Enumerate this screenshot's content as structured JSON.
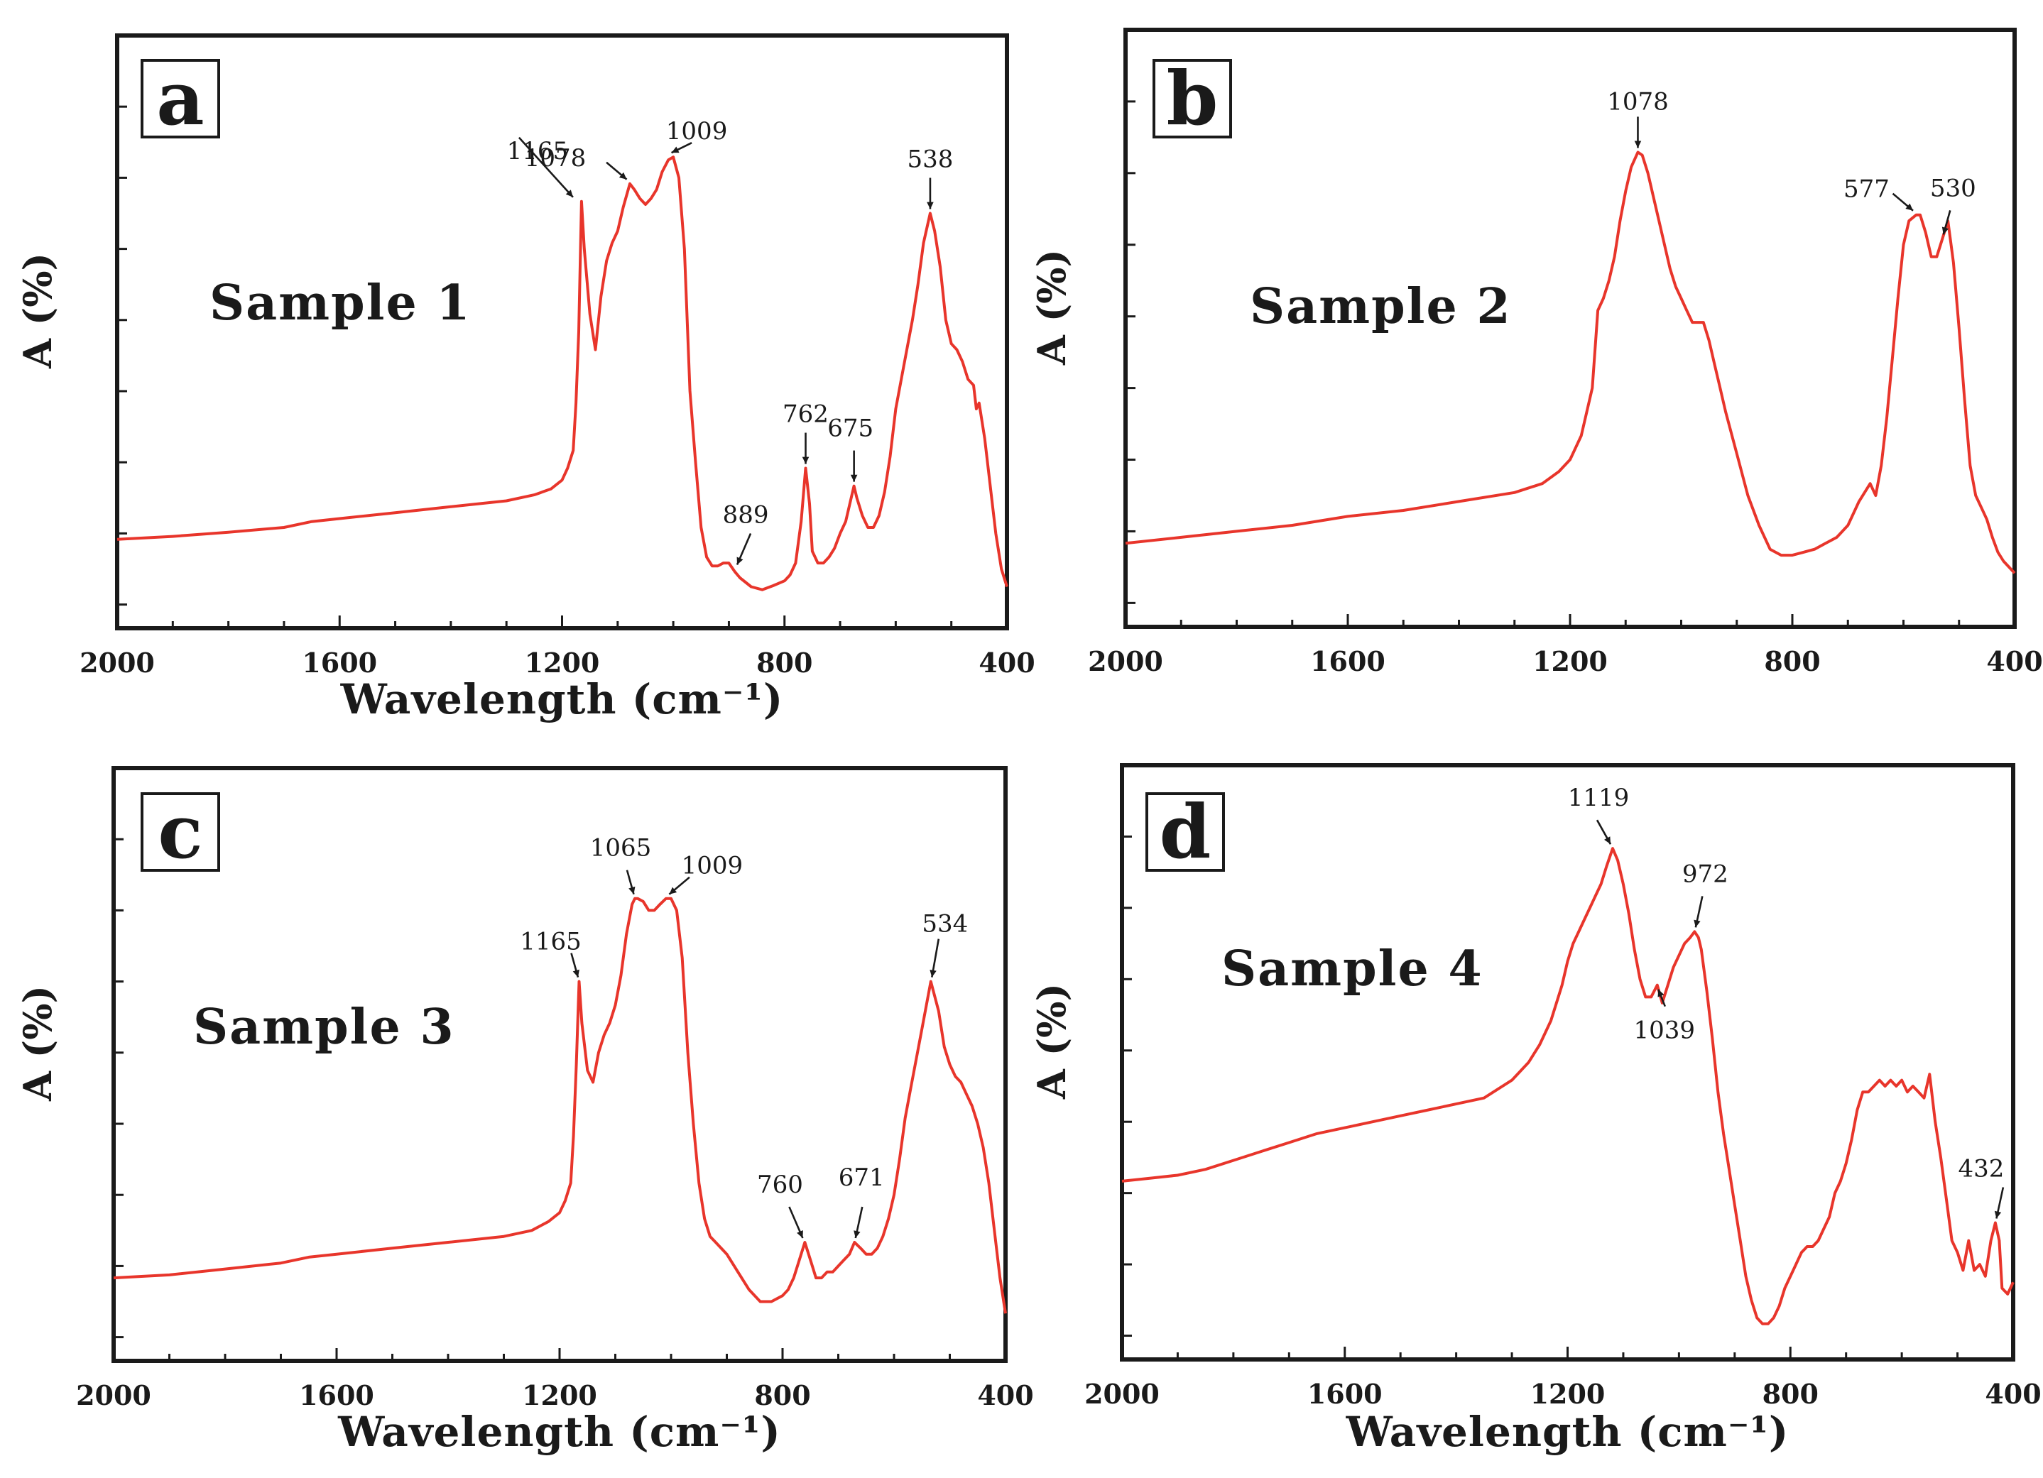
{
  "chart_data": [
    {
      "type": "line",
      "panel_letter": "a",
      "sample_label": "Sample 1",
      "xlabel": "Wavelength (cm⁻¹)",
      "ylabel": "A (%)",
      "xlim": [
        2000,
        400
      ],
      "ylim": [
        0,
        100
      ],
      "xticks": [
        2000,
        1600,
        1200,
        800,
        400
      ],
      "x": [
        2000,
        1900,
        1800,
        1700,
        1650,
        1600,
        1500,
        1400,
        1300,
        1250,
        1220,
        1200,
        1190,
        1180,
        1175,
        1170,
        1165,
        1160,
        1150,
        1140,
        1130,
        1120,
        1110,
        1100,
        1090,
        1078,
        1070,
        1060,
        1050,
        1040,
        1030,
        1020,
        1009,
        1000,
        990,
        980,
        970,
        960,
        950,
        940,
        930,
        920,
        910,
        900,
        889,
        880,
        860,
        840,
        820,
        800,
        790,
        780,
        770,
        762,
        755,
        750,
        740,
        730,
        720,
        710,
        700,
        690,
        675,
        670,
        660,
        650,
        640,
        630,
        620,
        610,
        600,
        590,
        580,
        570,
        560,
        550,
        538,
        530,
        520,
        510,
        500,
        490,
        480,
        470,
        460,
        455,
        450,
        440,
        430,
        420,
        410,
        400
      ],
      "series": [
        {
          "name": "Sample 1",
          "values": [
            15,
            15.5,
            16.2,
            17,
            18,
            18.5,
            19.5,
            20.5,
            21.5,
            22.5,
            23.5,
            25,
            27,
            30,
            38,
            50,
            72,
            64,
            53,
            47,
            56,
            62,
            65,
            67,
            71,
            75,
            74,
            72.5,
            71.5,
            72.5,
            74,
            77,
            79,
            79.5,
            76,
            64,
            40,
            28,
            17,
            12,
            10.5,
            10.5,
            11,
            11,
            9.5,
            8.5,
            7,
            6.5,
            7.2,
            8,
            9,
            11,
            18,
            27,
            21,
            13,
            11,
            11,
            12,
            13.5,
            16,
            18,
            24,
            22,
            19,
            17,
            17,
            19,
            23,
            29,
            37,
            42,
            47,
            52,
            58,
            65,
            70,
            67,
            61,
            52,
            48,
            47,
            45,
            42,
            41,
            37,
            38,
            32,
            24,
            16,
            10,
            7
          ]
        }
      ],
      "annotations": [
        {
          "text": "1165",
          "x": 1165,
          "y": 72
        },
        {
          "text": "1078",
          "x": 1078,
          "y": 75
        },
        {
          "text": "1009",
          "x": 1009,
          "y": 79.5
        },
        {
          "text": "538",
          "x": 538,
          "y": 70
        },
        {
          "text": "889",
          "x": 889,
          "y": 10
        },
        {
          "text": "762",
          "x": 762,
          "y": 27
        },
        {
          "text": "675",
          "x": 675,
          "y": 24
        }
      ]
    },
    {
      "type": "line",
      "panel_letter": "b",
      "sample_label": "Sample 2",
      "xlabel": "",
      "ylabel": "A (%)",
      "xlim": [
        2000,
        400
      ],
      "ylim": [
        0,
        100
      ],
      "xticks": [
        2000,
        1600,
        1200,
        800,
        400
      ],
      "x": [
        2000,
        1900,
        1800,
        1700,
        1600,
        1500,
        1400,
        1300,
        1250,
        1220,
        1200,
        1180,
        1160,
        1150,
        1140,
        1130,
        1120,
        1110,
        1100,
        1090,
        1078,
        1070,
        1060,
        1050,
        1040,
        1030,
        1020,
        1010,
        1000,
        990,
        980,
        970,
        960,
        950,
        940,
        930,
        920,
        900,
        880,
        860,
        840,
        820,
        800,
        780,
        760,
        740,
        720,
        700,
        680,
        660,
        650,
        640,
        630,
        620,
        610,
        600,
        590,
        577,
        570,
        560,
        550,
        540,
        530,
        520,
        510,
        500,
        490,
        480,
        470,
        460,
        450,
        440,
        430,
        420,
        410,
        400
      ],
      "series": [
        {
          "name": "Sample 2",
          "values": [
            14,
            15,
            16,
            17,
            18.5,
            19.5,
            21,
            22.5,
            24,
            26,
            28,
            32,
            40,
            53,
            55,
            58,
            62,
            68,
            73,
            77,
            79.5,
            79,
            76,
            72,
            68,
            64,
            60,
            57,
            55,
            53,
            51,
            51,
            51,
            48,
            44,
            40,
            36,
            29,
            22,
            17,
            13,
            12,
            12,
            12.5,
            13,
            14,
            15,
            17,
            21,
            24,
            22,
            27,
            35,
            45,
            55,
            64,
            68,
            69,
            69,
            66,
            62,
            62,
            65,
            68,
            61,
            50,
            38,
            27,
            22,
            20,
            18,
            15,
            12.5,
            11,
            10,
            9
          ]
        }
      ],
      "annotations": [
        {
          "text": "1078",
          "x": 1078,
          "y": 79.5
        },
        {
          "text": "577",
          "x": 577,
          "y": 69
        },
        {
          "text": "530",
          "x": 530,
          "y": 65
        }
      ]
    },
    {
      "type": "line",
      "panel_letter": "c",
      "sample_label": "Sample 3",
      "xlabel": "Wavelength (cm⁻¹)",
      "ylabel": "A (%)",
      "xlim": [
        2000,
        400
      ],
      "ylim": [
        0,
        100
      ],
      "xticks": [
        2000,
        1600,
        1200,
        800,
        400
      ],
      "x": [
        2000,
        1900,
        1800,
        1700,
        1650,
        1600,
        1500,
        1400,
        1300,
        1250,
        1220,
        1200,
        1190,
        1180,
        1175,
        1170,
        1165,
        1160,
        1150,
        1140,
        1130,
        1120,
        1110,
        1100,
        1090,
        1080,
        1070,
        1065,
        1060,
        1050,
        1040,
        1030,
        1020,
        1009,
        1000,
        990,
        980,
        970,
        960,
        950,
        940,
        930,
        920,
        900,
        880,
        860,
        840,
        820,
        800,
        790,
        780,
        770,
        760,
        750,
        740,
        730,
        720,
        710,
        700,
        690,
        680,
        671,
        660,
        650,
        640,
        630,
        620,
        610,
        600,
        590,
        580,
        570,
        560,
        550,
        534,
        520,
        510,
        500,
        490,
        480,
        470,
        460,
        450,
        440,
        430,
        420,
        410,
        400
      ],
      "series": [
        {
          "name": "Sample 3",
          "values": [
            14,
            14.5,
            15.5,
            16.5,
            17.5,
            18,
            19,
            20,
            21,
            22,
            23.5,
            25,
            27,
            30,
            38,
            50,
            64,
            57,
            49,
            47,
            52,
            55,
            57,
            60,
            65,
            72,
            77,
            78,
            78,
            77.5,
            76,
            76,
            77,
            78,
            78,
            76,
            68,
            52,
            40,
            30,
            24,
            21,
            20,
            18,
            15,
            12,
            10,
            10,
            11,
            12,
            14,
            17,
            20,
            17,
            14,
            14,
            15,
            15,
            16,
            17,
            18,
            20,
            19,
            18,
            18,
            19,
            21,
            24,
            28,
            34,
            41,
            46,
            51,
            56,
            64,
            59,
            53,
            50,
            48,
            47,
            45,
            43,
            40,
            36,
            30,
            22,
            14,
            8
          ]
        }
      ],
      "annotations": [
        {
          "text": "1165",
          "x": 1165,
          "y": 64
        },
        {
          "text": "1065",
          "x": 1065,
          "y": 78
        },
        {
          "text": "1009",
          "x": 1009,
          "y": 78
        },
        {
          "text": "534",
          "x": 534,
          "y": 64
        },
        {
          "text": "760",
          "x": 760,
          "y": 20
        },
        {
          "text": "671",
          "x": 671,
          "y": 20
        }
      ]
    },
    {
      "type": "line",
      "panel_letter": "d",
      "sample_label": "Sample 4",
      "xlabel": "Wavelength (cm⁻¹)",
      "ylabel": "A (%)",
      "xlim": [
        2000,
        400
      ],
      "ylim": [
        0,
        100
      ],
      "xticks": [
        2000,
        1600,
        1200,
        800,
        400
      ],
      "x": [
        2000,
        1950,
        1900,
        1850,
        1800,
        1750,
        1700,
        1650,
        1600,
        1550,
        1500,
        1450,
        1400,
        1350,
        1300,
        1270,
        1250,
        1230,
        1210,
        1200,
        1190,
        1180,
        1170,
        1160,
        1150,
        1140,
        1130,
        1119,
        1110,
        1100,
        1090,
        1080,
        1070,
        1060,
        1050,
        1039,
        1030,
        1020,
        1010,
        1000,
        990,
        980,
        972,
        965,
        960,
        950,
        940,
        930,
        920,
        910,
        900,
        890,
        880,
        870,
        860,
        850,
        840,
        830,
        820,
        810,
        800,
        790,
        780,
        770,
        760,
        750,
        740,
        730,
        720,
        710,
        700,
        690,
        680,
        670,
        660,
        650,
        640,
        630,
        620,
        610,
        600,
        590,
        580,
        570,
        560,
        550,
        540,
        530,
        520,
        510,
        500,
        490,
        480,
        470,
        460,
        450,
        440,
        432,
        425,
        420,
        410,
        400
      ],
      "series": [
        {
          "name": "Sample 4",
          "values": [
            30,
            30.5,
            31,
            32,
            33.5,
            35,
            36.5,
            38,
            39,
            40,
            41,
            42,
            43,
            44,
            47,
            50,
            53,
            57,
            63,
            67,
            70,
            72,
            74,
            76,
            78,
            80,
            83,
            86,
            84,
            80,
            75,
            69,
            64,
            61,
            61,
            63,
            60,
            63,
            66,
            68,
            70,
            71,
            72,
            71,
            69,
            62,
            54,
            45,
            38,
            32,
            26,
            20,
            14,
            10,
            7,
            6,
            6,
            7,
            9,
            12,
            14,
            16,
            18,
            19,
            19,
            20,
            22,
            24,
            28,
            30,
            33,
            37,
            42,
            45,
            45,
            46,
            47,
            46,
            47,
            46,
            47,
            45,
            46,
            45,
            44,
            48,
            40,
            34,
            27,
            20,
            18,
            15,
            20,
            15,
            16,
            14,
            20,
            23,
            20,
            12,
            11,
            13
          ]
        }
      ],
      "annotations": [
        {
          "text": "1119",
          "x": 1119,
          "y": 86
        },
        {
          "text": "972",
          "x": 972,
          "y": 72
        },
        {
          "text": "1039",
          "x": 1039,
          "y": 63
        },
        {
          "text": "432",
          "x": 432,
          "y": 23
        }
      ]
    }
  ]
}
